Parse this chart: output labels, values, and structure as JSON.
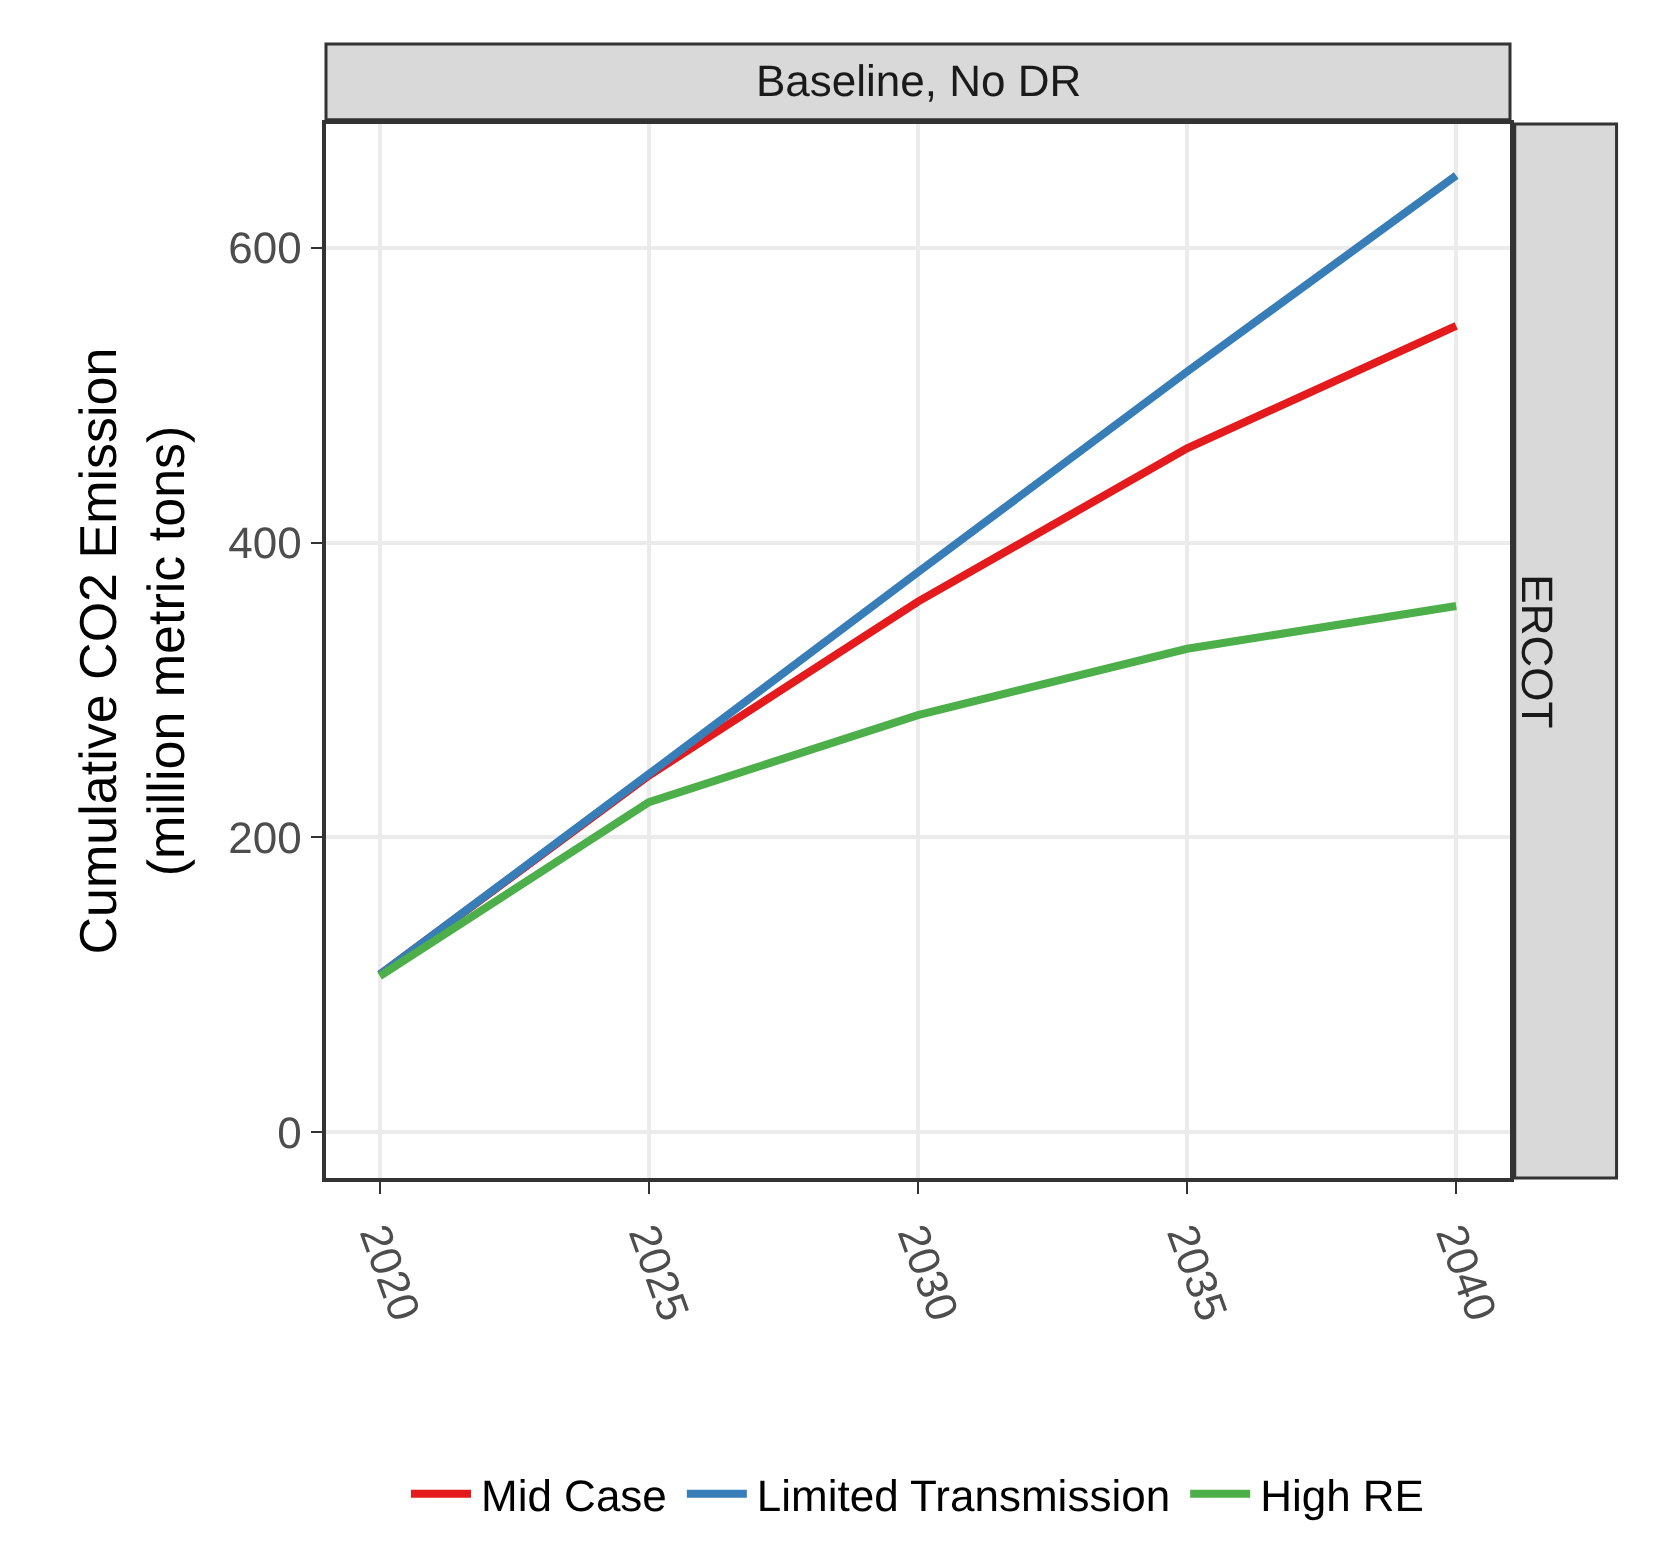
{
  "chart_data": {
    "type": "line",
    "xlabel": null,
    "ylabel": "Cumulative CO2 Emission\n(million metric tons)",
    "annotations": [
      "Baseline, No DR",
      "ERCOT"
    ],
    "x": [
      2020,
      2025,
      2030,
      2035,
      2040
    ],
    "series": [
      {
        "name": "Mid Case",
        "color": "#e41a1c",
        "values": [
          107,
          242,
          360,
          464,
          547
        ]
      },
      {
        "name": "Limited Transmission",
        "color": "#377eb8",
        "values": [
          107,
          243,
          380,
          516,
          649
        ]
      },
      {
        "name": "High RE",
        "color": "#4daf4a",
        "values": [
          106,
          224,
          283,
          328,
          357
        ]
      }
    ],
    "xlim": [
      2019,
      2041
    ],
    "xticks": [
      2020,
      2025,
      2030,
      2035,
      2040
    ],
    "ylim": [
      -31,
      684
    ],
    "yticks": [
      0,
      200,
      400,
      600
    ],
    "grid": true,
    "legend": "bottom",
    "marker": "none",
    "line_style": "solid"
  }
}
